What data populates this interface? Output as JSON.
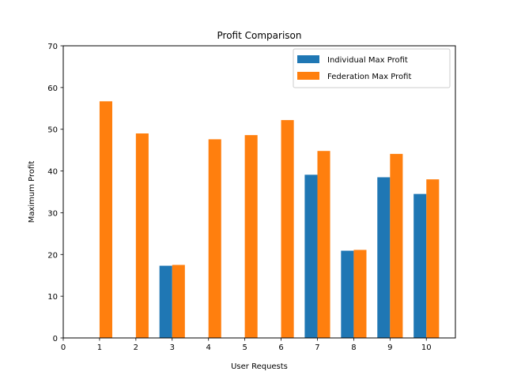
{
  "chart_data": {
    "type": "bar",
    "title": "Profit Comparison",
    "xlabel": "User Requests",
    "ylabel": "Maximum Profit",
    "xlim": [
      0,
      10.8
    ],
    "ylim": [
      0,
      70
    ],
    "xticks": [
      0,
      1,
      2,
      3,
      4,
      5,
      6,
      7,
      8,
      9,
      10
    ],
    "yticks": [
      0,
      10,
      20,
      30,
      40,
      50,
      60,
      70
    ],
    "categories": [
      1,
      2,
      3,
      4,
      5,
      6,
      7,
      8,
      9,
      10
    ],
    "bar_width": 0.35,
    "grid": false,
    "legend_position": "top-right",
    "series": [
      {
        "name": "Individual Max Profit",
        "color": "#1f77b4",
        "offset": -0.175,
        "values": [
          0,
          0,
          17.3,
          0,
          0,
          0,
          39.1,
          20.9,
          38.5,
          34.5
        ]
      },
      {
        "name": "Federation Max Profit",
        "color": "#ff7f0e",
        "offset": 0.175,
        "values": [
          56.7,
          49.0,
          17.5,
          47.6,
          48.6,
          52.2,
          44.8,
          21.1,
          44.1,
          38.0
        ]
      }
    ]
  }
}
